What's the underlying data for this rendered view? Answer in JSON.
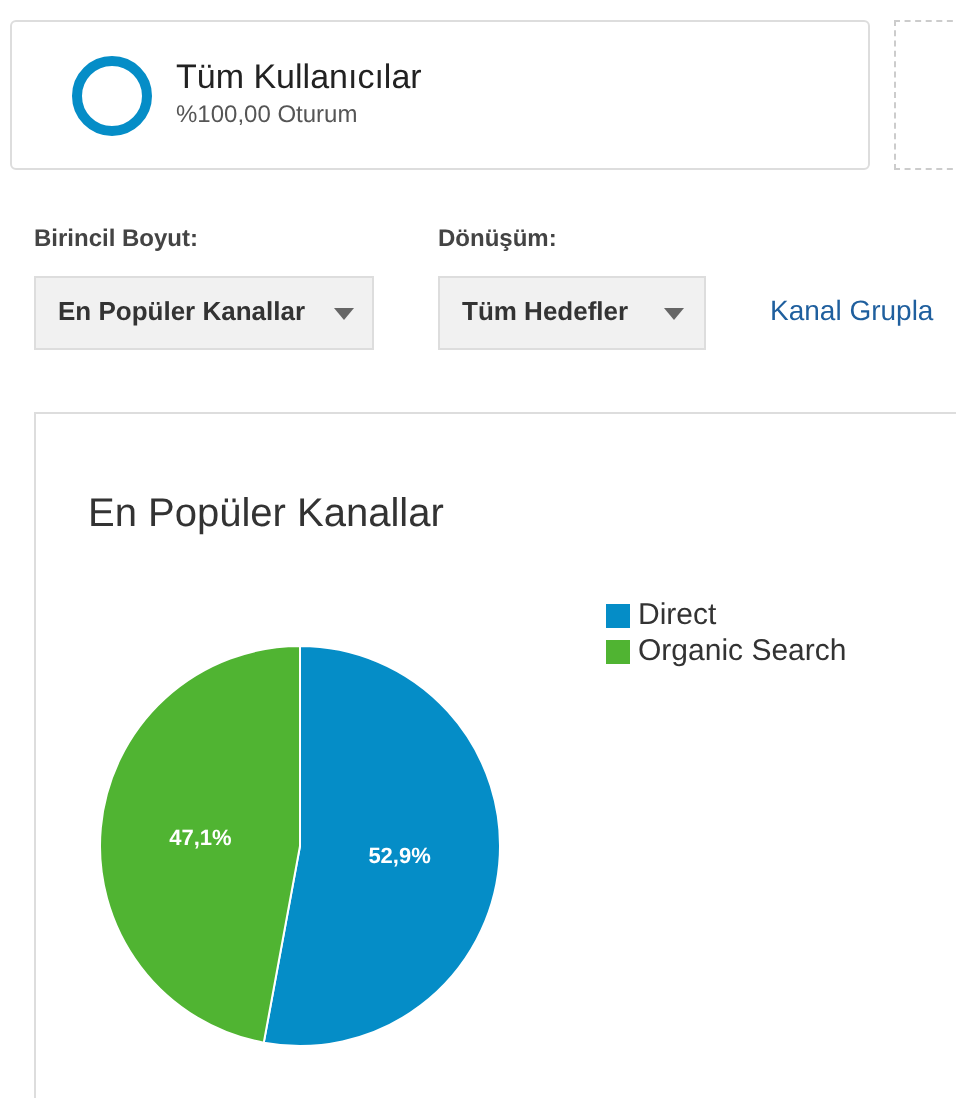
{
  "chart_data": {
    "type": "pie",
    "title": "En Popüler Kanallar",
    "categories": [
      "Direct",
      "Organic Search"
    ],
    "values": [
      52.9,
      47.1
    ],
    "value_labels": [
      "52,9%",
      "47,1%"
    ],
    "colors": [
      "#058dc7",
      "#50b432"
    ],
    "legend": "right",
    "annotations": [
      "Tüm Kullanıcılar",
      "%100,00 Oturum",
      "Birincil Boyut:",
      "En Popüler Kanallar",
      "Dönüşüm:",
      "Tüm Hedefler",
      "Kanal Grupla"
    ]
  }
}
